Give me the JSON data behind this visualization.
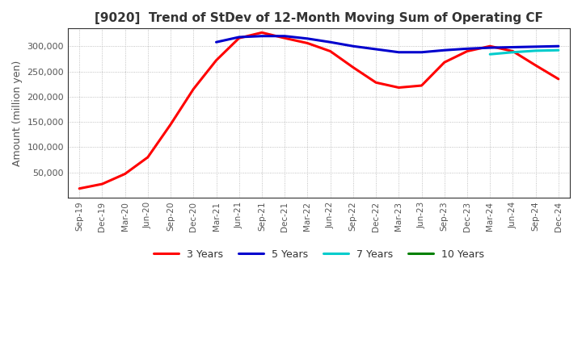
{
  "title": "[9020]  Trend of StDev of 12-Month Moving Sum of Operating CF",
  "ylabel": "Amount (million yen)",
  "background_color": "#ffffff",
  "grid_color": "#b0b0b0",
  "legend_labels": [
    "3 Years",
    "5 Years",
    "7 Years",
    "10 Years"
  ],
  "legend_colors": [
    "#ff0000",
    "#0000cd",
    "#00cccc",
    "#008000"
  ],
  "x_labels": [
    "Sep-19",
    "Dec-19",
    "Mar-20",
    "Jun-20",
    "Sep-20",
    "Dec-20",
    "Mar-21",
    "Jun-21",
    "Sep-21",
    "Dec-21",
    "Mar-22",
    "Jun-22",
    "Sep-22",
    "Dec-22",
    "Mar-23",
    "Jun-23",
    "Sep-23",
    "Dec-23",
    "Mar-24",
    "Jun-24",
    "Sep-24",
    "Dec-24"
  ],
  "ylim": [
    0,
    335000
  ],
  "yticks": [
    50000,
    100000,
    150000,
    200000,
    250000,
    300000
  ],
  "series_3y": [
    18000,
    27000,
    47000,
    80000,
    145000,
    215000,
    272000,
    316000,
    327000,
    316000,
    306000,
    290000,
    258000,
    228000,
    218000,
    222000,
    268000,
    290000,
    300000,
    290000,
    262000,
    235000
  ],
  "series_5y": [
    null,
    null,
    null,
    null,
    null,
    null,
    308000,
    318000,
    320000,
    320000,
    315000,
    308000,
    300000,
    294000,
    288000,
    288000,
    292000,
    295000,
    297000,
    298000,
    299000,
    300000
  ],
  "series_7y": [
    null,
    null,
    null,
    null,
    null,
    null,
    null,
    null,
    null,
    null,
    null,
    null,
    null,
    null,
    null,
    null,
    null,
    null,
    284000,
    288000,
    291000,
    292000
  ],
  "series_10y": [
    null,
    null,
    null,
    null,
    null,
    null,
    null,
    null,
    null,
    null,
    null,
    null,
    null,
    null,
    null,
    null,
    null,
    null,
    null,
    null,
    null,
    null
  ]
}
